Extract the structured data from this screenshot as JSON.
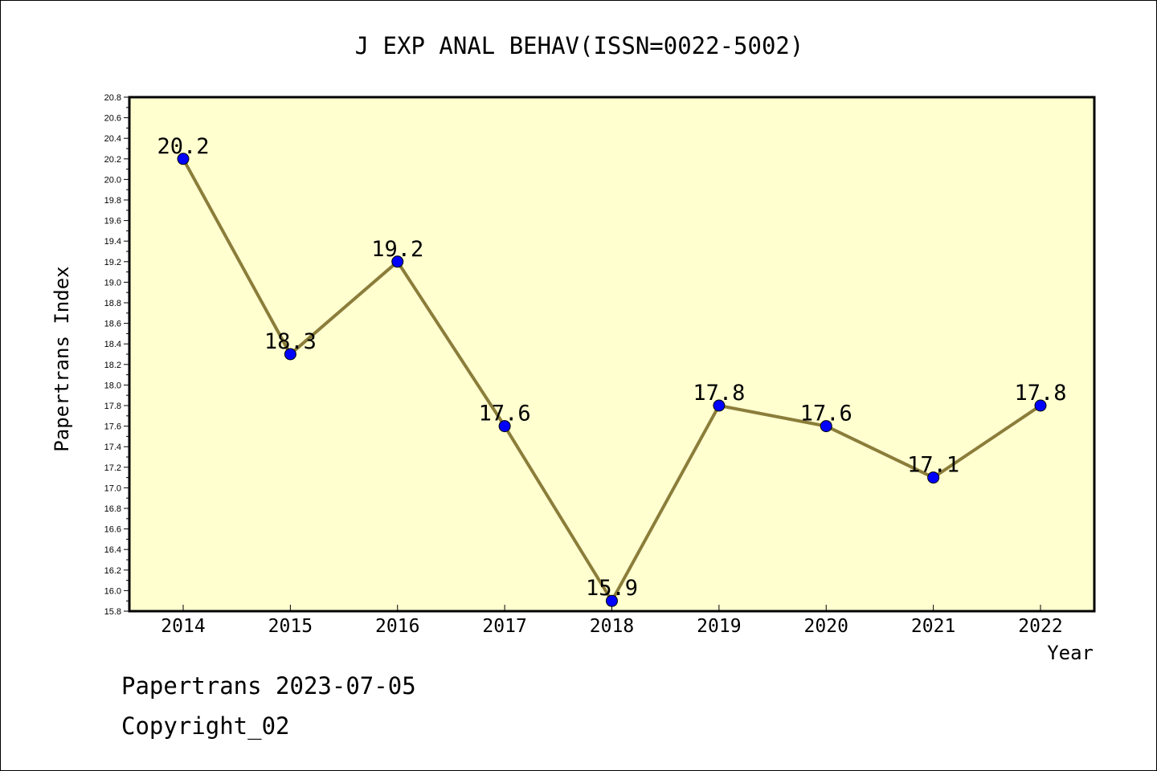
{
  "chart_data": {
    "type": "line",
    "title": "J EXP ANAL BEHAV(ISSN=0022-5002)",
    "xlabel": "Year",
    "ylabel": "Papertrans Index",
    "categories": [
      "2014",
      "2015",
      "2016",
      "2017",
      "2018",
      "2019",
      "2020",
      "2021",
      "2022"
    ],
    "series": [
      {
        "values": [
          20.2,
          18.3,
          19.2,
          17.6,
          15.9,
          17.8,
          17.6,
          17.1,
          17.8
        ]
      }
    ],
    "data_labels": [
      "20.2",
      "18.3",
      "19.2",
      "17.6",
      "15.9",
      "17.8",
      "17.6",
      "17.1",
      "17.8"
    ],
    "ylim": [
      15.8,
      20.8
    ],
    "yticks": [
      "15.8",
      "16.0",
      "16.2",
      "16.4",
      "16.6",
      "16.8",
      "17.0",
      "17.2",
      "17.4",
      "17.6",
      "17.8",
      "18.0",
      "18.2",
      "18.4",
      "18.6",
      "18.8",
      "19.0",
      "19.2",
      "19.4",
      "19.6",
      "19.8",
      "20.0",
      "20.2",
      "20.4",
      "20.6",
      "20.8"
    ],
    "grid": false,
    "colors": {
      "plot_background": "#FFFFD0",
      "line": "#8B7D3A",
      "marker": "#0000FF"
    }
  },
  "footer": {
    "line1": "Papertrans 2023-07-05",
    "line2": "Copyright_02"
  }
}
